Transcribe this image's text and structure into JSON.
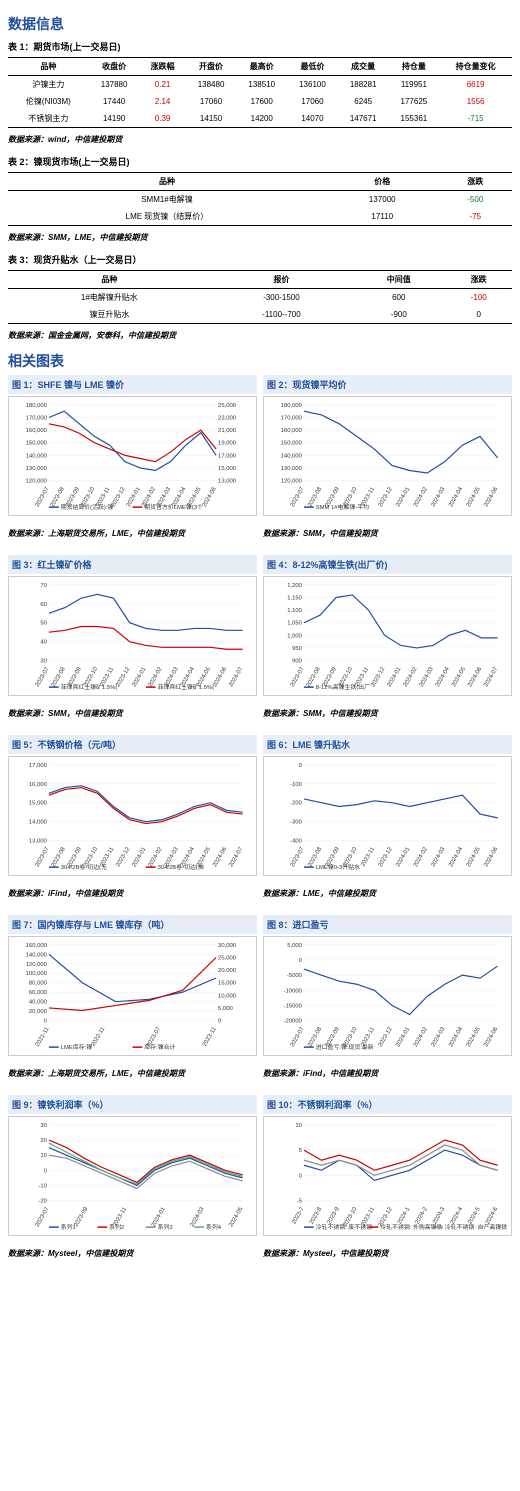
{
  "titles": {
    "data_info": "数据信息",
    "charts": "相关图表"
  },
  "table1": {
    "caption": "表 1：期货市场(上一交易日)",
    "headers": [
      "品种",
      "收盘价",
      "涨跌幅",
      "开盘价",
      "最高价",
      "最低价",
      "成交量",
      "持仓量",
      "持仓量变化"
    ],
    "rows": [
      {
        "cells": [
          "沪镍主力",
          "137880",
          "0.21",
          "138480",
          "138510",
          "136100",
          "188281",
          "119951",
          "6619"
        ],
        "colors": [
          "",
          "",
          "red",
          "",
          "",
          "",
          "",
          "",
          "red"
        ]
      },
      {
        "cells": [
          "伦镍(NI03M)",
          "17440",
          "2.14",
          "17060",
          "17600",
          "17060",
          "6245",
          "177625",
          "1556"
        ],
        "colors": [
          "",
          "",
          "red",
          "",
          "",
          "",
          "",
          "",
          "red"
        ]
      },
      {
        "cells": [
          "不锈钢主力",
          "14190",
          "0.39",
          "14150",
          "14200",
          "14070",
          "147671",
          "155361",
          "-715"
        ],
        "colors": [
          "",
          "",
          "red",
          "",
          "",
          "",
          "",
          "",
          "green"
        ]
      }
    ],
    "source": "数据来源：wind，中信建投期货"
  },
  "table2": {
    "caption": "表 2：镍现货市场(上一交易日)",
    "headers": [
      "品种",
      "价格",
      "涨跌"
    ],
    "rows": [
      {
        "cells": [
          "SMM1#电解镍",
          "137000",
          "-500"
        ],
        "colors": [
          "",
          "",
          "green"
        ]
      },
      {
        "cells": [
          "LME 现货镍（结算价）",
          "17110",
          "-75"
        ],
        "colors": [
          "",
          "",
          "red"
        ]
      }
    ],
    "source": "数据来源：SMM，LME，中信建投期货"
  },
  "table3": {
    "caption": "表 3：现货升贴水（上一交易日）",
    "headers": [
      "品种",
      "报价",
      "中间值",
      "涨跌"
    ],
    "rows": [
      {
        "cells": [
          "1#电解镍升贴水",
          "-300-1500",
          "600",
          "-100"
        ],
        "colors": [
          "",
          "",
          "",
          "red"
        ]
      },
      {
        "cells": [
          "镍豆升贴水",
          "-1100--700",
          "-900",
          "0"
        ],
        "colors": [
          "",
          "",
          "",
          ""
        ]
      }
    ],
    "source": "数据来源：国金金属网，安泰科，中信建投期货"
  },
  "charts": [
    {
      "title": "图 1：SHFE 镍与 LME 镍价",
      "type": "line-dual",
      "x_labels": [
        "2023-07",
        "2023-08",
        "2023-09",
        "2023-10",
        "2023-11",
        "2023-12",
        "2024-01",
        "2024-02",
        "2024-03",
        "2024-04",
        "2024-05",
        "2024-06"
      ],
      "y1_range": [
        120000,
        180000
      ],
      "y1_step": 10000,
      "y2_range": [
        13000,
        25000
      ],
      "y2_step": 2000,
      "series": [
        {
          "name": "期货结算价(活跃):镍",
          "color": "#1f4e9c",
          "axis": "left",
          "values": [
            170000,
            175000,
            165000,
            155000,
            148000,
            135000,
            130000,
            128000,
            135000,
            148000,
            158000,
            140000
          ]
        },
        {
          "name": "期货官方价LME镍(3个月)",
          "color": "#c00",
          "axis": "right",
          "values": [
            22000,
            21500,
            20500,
            19000,
            18000,
            17000,
            16500,
            16000,
            17500,
            19500,
            21000,
            18000
          ]
        }
      ],
      "source": "数据来源：上海期货交易所，LME，中信建投期货"
    },
    {
      "title": "图 2：现货镍平均价",
      "type": "line",
      "x_labels": [
        "2023-07",
        "2023-08",
        "2023-09",
        "2023-10",
        "2023-11",
        "2023-12",
        "2024-01",
        "2024-02",
        "2024-03",
        "2024-04",
        "2024-05",
        "2024-06"
      ],
      "y_range": [
        120000,
        180000
      ],
      "y_step": 10000,
      "series": [
        {
          "name": "SMM 1#电解镍-平均价",
          "color": "#1f4e9c",
          "values": [
            175000,
            172000,
            165000,
            155000,
            145000,
            132000,
            128000,
            126000,
            135000,
            148000,
            155000,
            138000
          ]
        }
      ],
      "source": "数据来源：SMM，中信建投期货"
    },
    {
      "title": "图 3：红土镍矿价格",
      "type": "line",
      "x_labels": [
        "2023-07",
        "2023-08",
        "2023-09",
        "2023-10",
        "2023-11",
        "2023-12",
        "2024-01",
        "2024-02",
        "2024-03",
        "2024-04",
        "2024-05",
        "2024-06",
        "2024-07"
      ],
      "y_range": [
        30,
        70
      ],
      "y_step": 10,
      "series": [
        {
          "name": "菲律宾红土镍矿1.5%(CIF)-平均价",
          "color": "#1f4e9c",
          "values": [
            55,
            58,
            63,
            65,
            63,
            50,
            47,
            46,
            46,
            47,
            47,
            46,
            46
          ]
        },
        {
          "name": "菲律宾红土镍矿1.5%(FOB)-平均价",
          "color": "#c00",
          "values": [
            45,
            46,
            48,
            48,
            47,
            40,
            38,
            37,
            37,
            37,
            37,
            36,
            36
          ]
        }
      ],
      "source": "数据来源：SMM，中信建投期货"
    },
    {
      "title": "图 4：8-12%高镍生铁(出厂价)",
      "type": "line",
      "x_labels": [
        "2023-07",
        "2023-08",
        "2023-09",
        "2023-10",
        "2023-11",
        "2023-12",
        "2024-01",
        "2024-02",
        "2024-03",
        "2024-04",
        "2024-05",
        "2024-06",
        "2024-07"
      ],
      "y_range": [
        900,
        1200
      ],
      "y_step": 50,
      "series": [
        {
          "name": "8-12%高镍生铁(出厂价)-平均价",
          "color": "#1f4e9c",
          "values": [
            1050,
            1080,
            1150,
            1160,
            1100,
            1000,
            960,
            950,
            960,
            1000,
            1020,
            990,
            990
          ]
        }
      ],
      "source": "数据来源：SMM，中信建投期货"
    },
    {
      "title": "图 5：不锈钢价格（元/吨）",
      "type": "line",
      "x_labels": [
        "2023-07",
        "2023-08",
        "2023-09",
        "2023-10",
        "2023-11",
        "2023-12",
        "2024-01",
        "2024-02",
        "2024-03",
        "2024-04",
        "2024-05",
        "2024-06",
        "2024-07"
      ],
      "y_range": [
        13000,
        17000
      ],
      "y_step": 1000,
      "series": [
        {
          "name": "304/2B卷-切边(无锡)-平均价",
          "color": "#1f4e9c",
          "values": [
            15500,
            15800,
            15900,
            15600,
            14800,
            14200,
            14000,
            14100,
            14400,
            14800,
            15000,
            14600,
            14500
          ]
        },
        {
          "name": "304/2B卷-切边(佛山)-平均价",
          "color": "#c00",
          "values": [
            15400,
            15700,
            15800,
            15500,
            14700,
            14100,
            13900,
            14000,
            14300,
            14700,
            14900,
            14500,
            14400
          ]
        }
      ],
      "source": "数据来源：iFind，中信建投期货"
    },
    {
      "title": "图 6：LME 镍升贴水",
      "type": "line",
      "x_labels": [
        "2023-07",
        "2023-08",
        "2023-09",
        "2023-10",
        "2023-11",
        "2023-12",
        "2024-01",
        "2024-02",
        "2024-03",
        "2024-04",
        "2024-05",
        "2024-06"
      ],
      "y_range": [
        -400,
        0
      ],
      "y_step": 100,
      "series": [
        {
          "name": "LME镍0-3升贴水",
          "color": "#1f4e9c",
          "values": [
            -180,
            -200,
            -220,
            -210,
            -190,
            -200,
            -220,
            -200,
            -180,
            -160,
            -260,
            -280
          ]
        }
      ],
      "source": "数据来源：LME，中信建投期货"
    },
    {
      "title": "图 7：国内镍库存与 LME 镍库存（吨）",
      "type": "line-dual",
      "x_labels": [
        "2021-11",
        "2022-11",
        "2023-07",
        "2023-11"
      ],
      "y1_range": [
        0,
        160000
      ],
      "y1_step": 20000,
      "y2_range": [
        0,
        30000
      ],
      "y2_step": 5000,
      "series": [
        {
          "name": "LME库存:镍",
          "color": "#1f4e9c",
          "axis": "left",
          "values": [
            140000,
            80000,
            40000,
            45000,
            60000,
            90000
          ]
        },
        {
          "name": "库存:镍合计",
          "color": "#c00",
          "axis": "right",
          "values": [
            5000,
            4000,
            6000,
            8000,
            12000,
            25000
          ]
        }
      ],
      "source": "数据来源：上海期货交易所，LME，中信建投期货"
    },
    {
      "title": "图 8：进口盈亏",
      "type": "line",
      "x_labels": [
        "2023-07",
        "2023-08",
        "2023-09",
        "2023-10",
        "2023-11",
        "2023-12",
        "2024-01",
        "2024-02",
        "2024-03",
        "2024-04",
        "2024-05",
        "2024-06"
      ],
      "y_range": [
        -20000,
        5000
      ],
      "y_step": 5000,
      "series": [
        {
          "name": "进口盈亏:镍:现货:最新价",
          "color": "#1f4e9c",
          "values": [
            -3000,
            -5000,
            -7000,
            -8000,
            -10000,
            -15000,
            -18000,
            -12000,
            -8000,
            -5000,
            -6000,
            -2000
          ]
        }
      ],
      "source": "数据来源：iFind，中信建投期货"
    },
    {
      "title": "图 9：镍铁利润率（%）",
      "type": "line-multi",
      "x_labels": [
        "2023-07",
        "2023-09",
        "2023-11",
        "2024-01",
        "2024-03",
        "2024-05"
      ],
      "y_range": [
        -20,
        30
      ],
      "y_step": 10,
      "series": [
        {
          "name": "系列1",
          "color": "#1f4e9c",
          "values": [
            15,
            10,
            5,
            0,
            -5,
            -10,
            0,
            5,
            8,
            3,
            -2,
            -5
          ]
        },
        {
          "name": "系列2",
          "color": "#c00",
          "values": [
            20,
            15,
            8,
            2,
            -3,
            -8,
            2,
            7,
            10,
            5,
            0,
            -3
          ]
        },
        {
          "name": "系列3",
          "color": "#888",
          "values": [
            10,
            8,
            3,
            -2,
            -7,
            -12,
            -2,
            3,
            6,
            1,
            -4,
            -7
          ]
        },
        {
          "name": "系列4",
          "color": "#5a8",
          "values": [
            18,
            12,
            6,
            0,
            -5,
            -9,
            1,
            6,
            9,
            4,
            -1,
            -4
          ]
        }
      ],
      "source": "数据来源：Mysteel，中信建投期货"
    },
    {
      "title": "图 10：不锈钢利润率（%）",
      "type": "line-multi",
      "x_labels": [
        "2023-7",
        "2023-8",
        "2023-9",
        "2023-10",
        "2023-11",
        "2023-12",
        "2024-1",
        "2024-2",
        "2024-3",
        "2024-4",
        "2024-5",
        "2024-6"
      ],
      "y_range": [
        -5,
        10
      ],
      "y_step": 5,
      "series": [
        {
          "name": "冷轧不锈钢: 废不锈钢: 304: 利润率: 中国（日）",
          "color": "#1f4e9c",
          "values": [
            2,
            1,
            3,
            2,
            -1,
            0,
            1,
            3,
            5,
            4,
            2,
            1
          ]
        },
        {
          "name": "冷轧不锈钢: 外购高镍铁: 304: 利润率: 中国（日）",
          "color": "#c00",
          "values": [
            5,
            3,
            4,
            3,
            1,
            2,
            3,
            5,
            7,
            6,
            3,
            2
          ]
        },
        {
          "name": "冷轧不锈钢: 自产高镍铁: 304: 利润率: 中国（日）",
          "color": "#888",
          "values": [
            3,
            2,
            3,
            2,
            0,
            1,
            2,
            4,
            6,
            5,
            2,
            1
          ]
        }
      ],
      "source": "数据来源：Mysteel，中信建投期货"
    }
  ]
}
